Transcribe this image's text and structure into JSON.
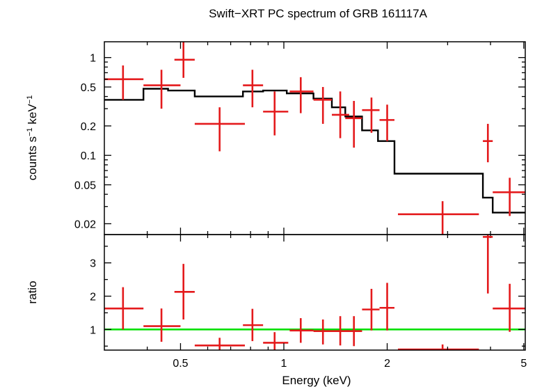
{
  "chart_data": {
    "type": "scatter",
    "title": "Swift−XRT PC spectrum of GRB 161117A",
    "xlabel": "Energy (keV)",
    "xscale": "log",
    "xlim": [
      0.3,
      5.05
    ],
    "x_ticks": [
      {
        "value": 0.5,
        "label": "0.5"
      },
      {
        "value": 1,
        "label": "1"
      },
      {
        "value": 2,
        "label": "2"
      },
      {
        "value": 5,
        "label": "5"
      }
    ],
    "colors": {
      "data": "#e41a1c",
      "model": "#000000",
      "unity": "#00e000"
    },
    "panels": [
      {
        "name": "spectrum",
        "ylabel_main": "counts s",
        "ylabel_sup1": "−1",
        "ylabel_mid": " keV",
        "ylabel_sup2": "−1",
        "yscale": "log",
        "ylim": [
          0.0155,
          1.45
        ],
        "y_ticks": [
          {
            "value": 1,
            "label": "1"
          },
          {
            "value": 0.5,
            "label": "0.5"
          },
          {
            "value": 0.2,
            "label": "0.2"
          },
          {
            "value": 0.1,
            "label": "0.1"
          },
          {
            "value": 0.05,
            "label": "0.05"
          },
          {
            "value": 0.02,
            "label": "0.02"
          }
        ],
        "data_points": [
          {
            "x": 0.34,
            "xlo": 0.3,
            "xhi": 0.39,
            "y": 0.6,
            "ylo": 0.37,
            "yhi": 0.83
          },
          {
            "x": 0.44,
            "xlo": 0.39,
            "xhi": 0.5,
            "y": 0.52,
            "ylo": 0.3,
            "yhi": 0.75
          },
          {
            "x": 0.51,
            "xlo": 0.48,
            "xhi": 0.55,
            "y": 0.95,
            "ylo": 0.62,
            "yhi": 1.6
          },
          {
            "x": 0.65,
            "xlo": 0.55,
            "xhi": 0.77,
            "y": 0.21,
            "ylo": 0.11,
            "yhi": 0.31
          },
          {
            "x": 0.81,
            "xlo": 0.76,
            "xhi": 0.87,
            "y": 0.52,
            "ylo": 0.31,
            "yhi": 0.75
          },
          {
            "x": 0.94,
            "xlo": 0.87,
            "xhi": 1.03,
            "y": 0.28,
            "ylo": 0.16,
            "yhi": 0.45
          },
          {
            "x": 1.12,
            "xlo": 1.04,
            "xhi": 1.22,
            "y": 0.45,
            "ylo": 0.27,
            "yhi": 0.63
          },
          {
            "x": 1.3,
            "xlo": 1.22,
            "xhi": 1.38,
            "y": 0.37,
            "ylo": 0.21,
            "yhi": 0.5
          },
          {
            "x": 1.46,
            "xlo": 1.38,
            "xhi": 1.55,
            "y": 0.26,
            "ylo": 0.15,
            "yhi": 0.45
          },
          {
            "x": 1.6,
            "xlo": 1.51,
            "xhi": 1.69,
            "y": 0.24,
            "ylo": 0.12,
            "yhi": 0.36
          },
          {
            "x": 1.8,
            "xlo": 1.69,
            "xhi": 1.9,
            "y": 0.29,
            "ylo": 0.17,
            "yhi": 0.39
          },
          {
            "x": 2.0,
            "xlo": 1.9,
            "xhi": 2.1,
            "y": 0.23,
            "ylo": 0.14,
            "yhi": 0.33
          },
          {
            "x": 2.9,
            "xlo": 2.15,
            "xhi": 3.7,
            "y": 0.025,
            "ylo": 0.0155,
            "yhi": 0.034
          },
          {
            "x": 3.93,
            "xlo": 3.8,
            "xhi": 4.06,
            "y": 0.14,
            "ylo": 0.085,
            "yhi": 0.21
          },
          {
            "x": 4.55,
            "xlo": 4.06,
            "xhi": 5.05,
            "y": 0.042,
            "ylo": 0.024,
            "yhi": 0.059
          }
        ],
        "model_steps": [
          {
            "xlo": 0.3,
            "xhi": 0.39,
            "y": 0.37
          },
          {
            "xlo": 0.39,
            "xhi": 0.46,
            "y": 0.48
          },
          {
            "xlo": 0.46,
            "xhi": 0.55,
            "y": 0.46
          },
          {
            "xlo": 0.55,
            "xhi": 0.76,
            "y": 0.4
          },
          {
            "xlo": 0.76,
            "xhi": 0.87,
            "y": 0.45
          },
          {
            "xlo": 0.87,
            "xhi": 1.02,
            "y": 0.46
          },
          {
            "xlo": 1.02,
            "xhi": 1.22,
            "y": 0.43
          },
          {
            "xlo": 1.22,
            "xhi": 1.38,
            "y": 0.38
          },
          {
            "xlo": 1.38,
            "xhi": 1.51,
            "y": 0.31
          },
          {
            "xlo": 1.51,
            "xhi": 1.69,
            "y": 0.25
          },
          {
            "xlo": 1.69,
            "xhi": 1.88,
            "y": 0.18
          },
          {
            "xlo": 1.88,
            "xhi": 2.1,
            "y": 0.14
          },
          {
            "xlo": 2.1,
            "xhi": 3.8,
            "y": 0.065
          },
          {
            "xlo": 3.8,
            "xhi": 4.06,
            "y": 0.037
          },
          {
            "xlo": 4.06,
            "xhi": 5.05,
            "y": 0.026
          }
        ]
      },
      {
        "name": "ratio",
        "ylabel": "ratio",
        "yscale": "linear",
        "ylim": [
          0.38,
          3.85
        ],
        "y_ticks": [
          {
            "value": 1,
            "label": "1"
          },
          {
            "value": 2,
            "label": "2"
          },
          {
            "value": 3,
            "label": "3"
          }
        ],
        "reference_line": 1,
        "data_points": [
          {
            "x": 0.34,
            "xlo": 0.3,
            "xhi": 0.39,
            "y": 1.63,
            "ylo": 1.0,
            "yhi": 2.27
          },
          {
            "x": 0.44,
            "xlo": 0.39,
            "xhi": 0.5,
            "y": 1.1,
            "ylo": 0.63,
            "yhi": 1.63
          },
          {
            "x": 0.51,
            "xlo": 0.48,
            "xhi": 0.55,
            "y": 2.13,
            "ylo": 1.3,
            "yhi": 2.97
          },
          {
            "x": 0.65,
            "xlo": 0.55,
            "xhi": 0.77,
            "y": 0.52,
            "ylo": 0.38,
            "yhi": 0.75
          },
          {
            "x": 0.81,
            "xlo": 0.76,
            "xhi": 0.87,
            "y": 1.13,
            "ylo": 0.65,
            "yhi": 1.62
          },
          {
            "x": 0.94,
            "xlo": 0.87,
            "xhi": 1.03,
            "y": 0.6,
            "ylo": 0.38,
            "yhi": 0.92
          },
          {
            "x": 1.12,
            "xlo": 1.04,
            "xhi": 1.22,
            "y": 0.97,
            "ylo": 0.6,
            "yhi": 1.34
          },
          {
            "x": 1.3,
            "xlo": 1.22,
            "xhi": 1.38,
            "y": 0.95,
            "ylo": 0.55,
            "yhi": 1.3
          },
          {
            "x": 1.46,
            "xlo": 1.38,
            "xhi": 1.55,
            "y": 0.95,
            "ylo": 0.52,
            "yhi": 1.4
          },
          {
            "x": 1.6,
            "xlo": 1.51,
            "xhi": 1.69,
            "y": 0.95,
            "ylo": 0.5,
            "yhi": 1.4
          },
          {
            "x": 1.8,
            "xlo": 1.69,
            "xhi": 1.9,
            "y": 1.6,
            "ylo": 0.97,
            "yhi": 2.22
          },
          {
            "x": 2.0,
            "xlo": 1.9,
            "xhi": 2.1,
            "y": 1.65,
            "ylo": 0.97,
            "yhi": 2.4
          },
          {
            "x": 2.9,
            "xlo": 2.15,
            "xhi": 3.7,
            "y": 0.4,
            "ylo": 0.38,
            "yhi": 0.55
          },
          {
            "x": 3.93,
            "xlo": 3.8,
            "xhi": 4.06,
            "y": 3.78,
            "ylo": 2.08,
            "yhi": 3.85
          },
          {
            "x": 4.55,
            "xlo": 4.06,
            "xhi": 5.05,
            "y": 1.63,
            "ylo": 0.93,
            "yhi": 2.37
          }
        ]
      }
    ]
  }
}
